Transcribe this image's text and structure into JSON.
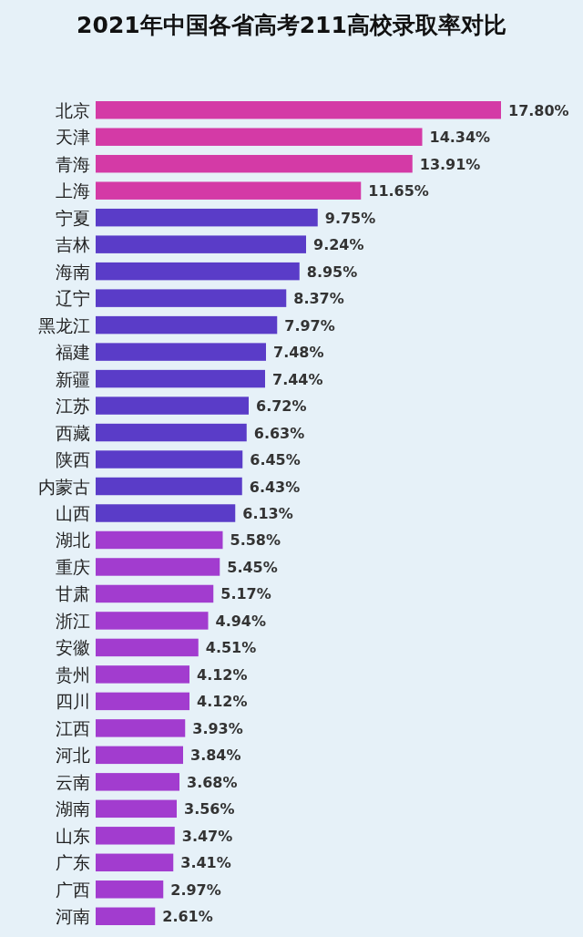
{
  "chart_data": {
    "type": "bar",
    "orientation": "horizontal",
    "title": "2021年中国各省高考211高校录取率对比",
    "categories": [
      "北京",
      "天津",
      "青海",
      "上海",
      "宁夏",
      "吉林",
      "海南",
      "辽宁",
      "黑龙江",
      "福建",
      "新疆",
      "江苏",
      "西藏",
      "陕西",
      "内蒙古",
      "山西",
      "湖北",
      "重庆",
      "甘肃",
      "浙江",
      "安徽",
      "贵州",
      "四川",
      "江西",
      "河北",
      "云南",
      "湖南",
      "山东",
      "广东",
      "广西",
      "河南"
    ],
    "values": [
      17.8,
      14.34,
      13.91,
      11.65,
      9.75,
      9.24,
      8.95,
      8.37,
      7.97,
      7.48,
      7.44,
      6.72,
      6.63,
      6.45,
      6.43,
      6.13,
      5.58,
      5.45,
      5.17,
      4.94,
      4.51,
      4.12,
      4.12,
      3.93,
      3.84,
      3.68,
      3.56,
      3.47,
      3.41,
      2.97,
      2.61
    ],
    "value_labels": [
      "17.80%",
      "14.34%",
      "13.91%",
      "11.65%",
      "9.75%",
      "9.24%",
      "8.95%",
      "8.37%",
      "7.97%",
      "7.48%",
      "7.44%",
      "6.72%",
      "6.63%",
      "6.45%",
      "6.43%",
      "6.13%",
      "5.58%",
      "5.45%",
      "5.17%",
      "4.94%",
      "4.51%",
      "4.12%",
      "4.12%",
      "3.93%",
      "3.84%",
      "3.68%",
      "3.56%",
      "3.47%",
      "3.41%",
      "2.97%",
      "2.61%"
    ],
    "colors": [
      "#d43aa6",
      "#d43aa6",
      "#d43aa6",
      "#d43aa6",
      "#5a3cc8",
      "#5a3cc8",
      "#5a3cc8",
      "#5a3cc8",
      "#5a3cc8",
      "#5a3cc8",
      "#5a3cc8",
      "#5a3cc8",
      "#5a3cc8",
      "#5a3cc8",
      "#5a3cc8",
      "#5a3cc8",
      "#a23ccf",
      "#a23ccf",
      "#a23ccf",
      "#a23ccf",
      "#a23ccf",
      "#a23ccf",
      "#a23ccf",
      "#a23ccf",
      "#a23ccf",
      "#a23ccf",
      "#a23ccf",
      "#a23ccf",
      "#a23ccf",
      "#a23ccf",
      "#a23ccf"
    ],
    "stacked": false
  }
}
